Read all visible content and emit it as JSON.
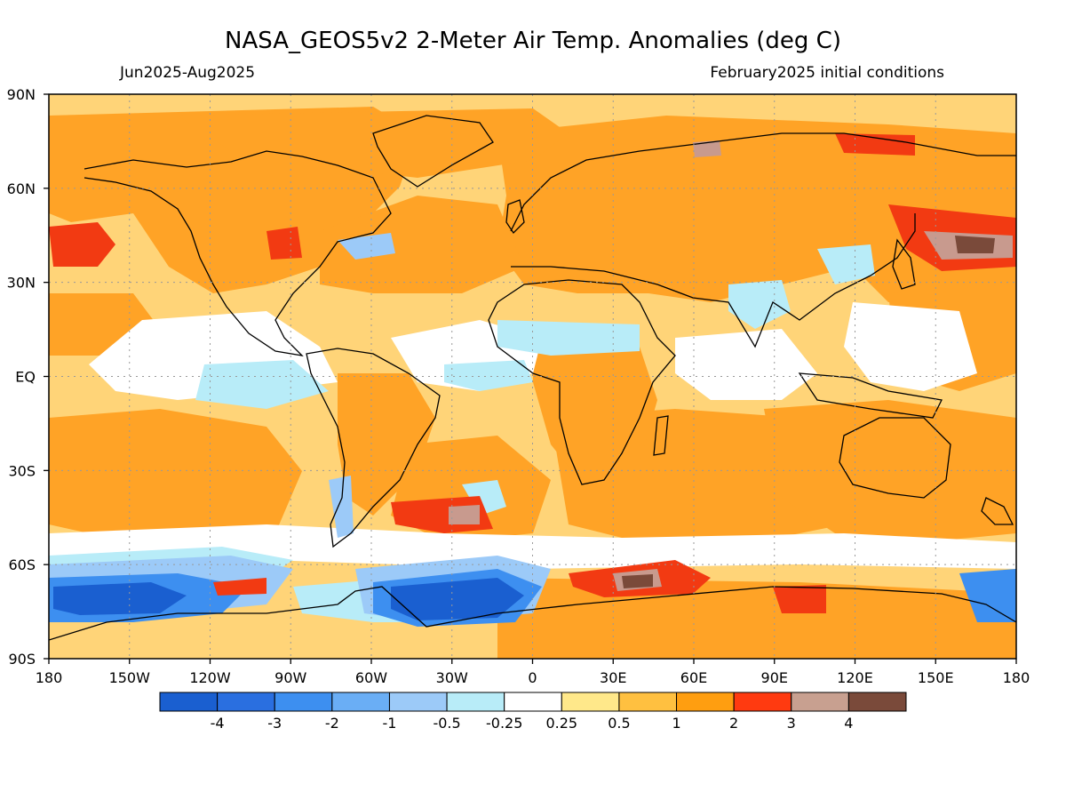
{
  "header": {
    "title": "NASA_GEOS5v2 2-Meter Air Temp. Anomalies (deg C)",
    "period": "Jun2025-Aug2025",
    "init": "February2025 initial conditions"
  },
  "axes": {
    "lat_labels": [
      "90N",
      "60N",
      "30N",
      "EQ",
      "30S",
      "60S",
      "90S"
    ],
    "lon_labels": [
      "180",
      "150W",
      "120W",
      "90W",
      "60W",
      "30W",
      "0",
      "30E",
      "60E",
      "90E",
      "120E",
      "150E",
      "180"
    ]
  },
  "colorbar": {
    "labels": [
      "-4",
      "-3",
      "-2",
      "-1",
      "-0.5",
      "-0.25",
      "0.25",
      "0.5",
      "1",
      "2",
      "3",
      "4"
    ],
    "colors": [
      "#1a5fd0",
      "#2a6fe0",
      "#3d8ff0",
      "#6aaef5",
      "#9ccaf8",
      "#b8ecf8",
      "#ffffff",
      "#ffe88a",
      "#ffc040",
      "#ff9e10",
      "#ff3a10",
      "#c8a090",
      "#7a4a3a"
    ]
  },
  "palette": {
    "ocean_base": "#ffd478",
    "orange": "#ffa326",
    "red": "#f23a12",
    "brown": "#7a4a3a",
    "pink": "#c89a8e",
    "light_yellow": "#ffe88a",
    "white": "#ffffff",
    "cyan": "#b8ecf8",
    "light_blue": "#9ccaf8",
    "blue": "#3d8ff0",
    "dark_blue": "#1a5fd0"
  }
}
